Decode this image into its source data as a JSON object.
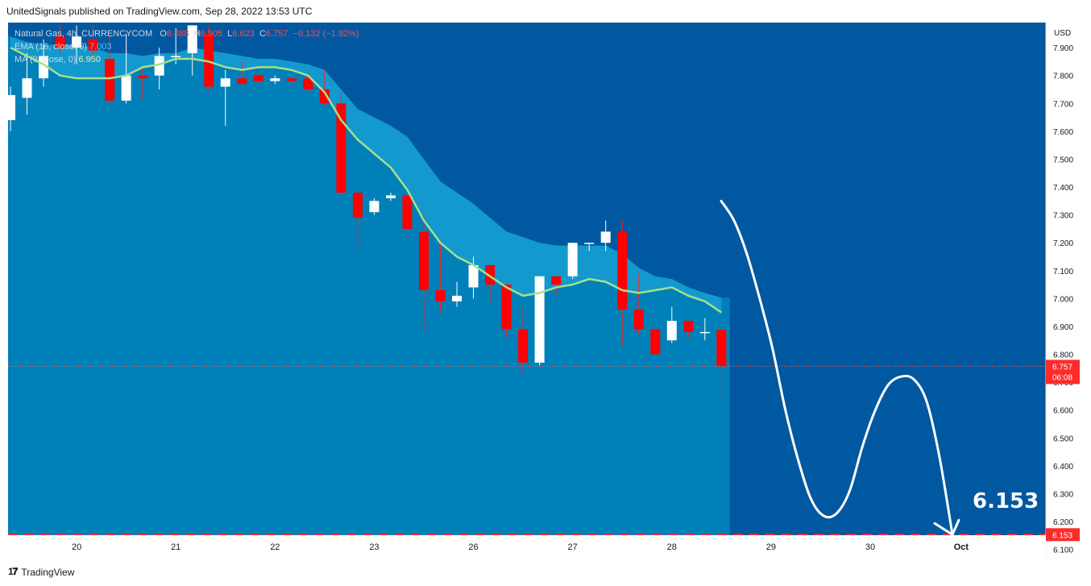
{
  "header": {
    "credit": "UnitedSignals published on TradingView.com, Sep 28, 2022 13:53 UTC"
  },
  "footer": {
    "brand": "TradingView",
    "logo_icon": "tradingview-logo-icon"
  },
  "legend": {
    "symbol": "Natural Gas, 4h, CURRENCYCOM",
    "o_label": "O",
    "o_value": "6.888",
    "h_label": "H",
    "h_value": "6.905",
    "l_label": "L",
    "l_value": "6.623",
    "c_label": "C",
    "c_value": "6.757",
    "change": "−0.132 (−1.92%)",
    "ema_label": "EMA (16, close, 0)",
    "ema_value": "7.003",
    "ma_label": "MA (9, close, 0)",
    "ma_value": "6.950"
  },
  "colors": {
    "plot_background": "#0058a0",
    "area_fill": "#0080b8",
    "band_fill": "#169ed0",
    "ma_line": "#a6e08a",
    "bull_candle": "#ffffff",
    "bear_candle": "#ff0000",
    "projection": "#ffffff",
    "target_line": "#ff2b2b"
  },
  "chart_data": {
    "type": "candlestick",
    "title": "Natural Gas, 4h, CURRENCYCOM",
    "currency_label": "USD",
    "y_ticks": [
      "7.900",
      "7.800",
      "7.700",
      "7.600",
      "7.500",
      "7.400",
      "7.300",
      "7.200",
      "7.100",
      "7.000",
      "6.900",
      "6.800",
      "6.700",
      "6.600",
      "6.500",
      "6.400",
      "6.300",
      "6.200",
      "6.100"
    ],
    "ylim": [
      6.07,
      7.99
    ],
    "x_ticks": [
      {
        "label": "20",
        "bar": 4
      },
      {
        "label": "21",
        "bar": 10
      },
      {
        "label": "22",
        "bar": 16
      },
      {
        "label": "23",
        "bar": 22
      },
      {
        "label": "26",
        "bar": 28
      },
      {
        "label": "27",
        "bar": 34
      },
      {
        "label": "28",
        "bar": 40
      },
      {
        "label": "29",
        "bar": 46
      },
      {
        "label": "30",
        "bar": 52
      },
      {
        "label": "Oct",
        "bar": 57.5
      }
    ],
    "candles": [
      {
        "o": 7.64,
        "h": 7.76,
        "l": 7.6,
        "c": 7.73
      },
      {
        "o": 7.72,
        "h": 7.88,
        "l": 7.66,
        "c": 7.79
      },
      {
        "o": 7.79,
        "h": 7.93,
        "l": 7.76,
        "c": 7.87
      },
      {
        "o": 7.94,
        "h": 7.98,
        "l": 7.88,
        "c": 7.9
      },
      {
        "o": 7.9,
        "h": 7.98,
        "l": 7.84,
        "c": 7.94
      },
      {
        "o": 7.93,
        "h": 7.98,
        "l": 7.86,
        "c": 7.89
      },
      {
        "o": 7.86,
        "h": 7.94,
        "l": 7.7,
        "c": 7.71
      },
      {
        "o": 7.71,
        "h": 7.95,
        "l": 7.7,
        "c": 7.8
      },
      {
        "o": 7.8,
        "h": 7.83,
        "l": 7.71,
        "c": 7.79
      },
      {
        "o": 7.8,
        "h": 7.9,
        "l": 7.75,
        "c": 7.87
      },
      {
        "o": 7.87,
        "h": 7.97,
        "l": 7.84,
        "c": 7.87
      },
      {
        "o": 7.88,
        "h": 7.98,
        "l": 7.8,
        "c": 7.98
      },
      {
        "o": 7.95,
        "h": 7.98,
        "l": 7.74,
        "c": 7.76
      },
      {
        "o": 7.76,
        "h": 7.82,
        "l": 7.62,
        "c": 7.79
      },
      {
        "o": 7.79,
        "h": 7.85,
        "l": 7.76,
        "c": 7.77
      },
      {
        "o": 7.8,
        "h": 7.81,
        "l": 7.77,
        "c": 7.78
      },
      {
        "o": 7.78,
        "h": 7.8,
        "l": 7.77,
        "c": 7.79
      },
      {
        "o": 7.79,
        "h": 7.8,
        "l": 7.76,
        "c": 7.78
      },
      {
        "o": 7.79,
        "h": 7.81,
        "l": 7.74,
        "c": 7.75
      },
      {
        "o": 7.75,
        "h": 7.82,
        "l": 7.69,
        "c": 7.7
      },
      {
        "o": 7.7,
        "h": 7.74,
        "l": 7.36,
        "c": 7.38
      },
      {
        "o": 7.38,
        "h": 7.38,
        "l": 7.18,
        "c": 7.29
      },
      {
        "o": 7.31,
        "h": 7.36,
        "l": 7.3,
        "c": 7.35
      },
      {
        "o": 7.36,
        "h": 7.38,
        "l": 7.35,
        "c": 7.37
      },
      {
        "o": 7.37,
        "h": 7.38,
        "l": 7.21,
        "c": 7.25
      },
      {
        "o": 7.24,
        "h": 7.3,
        "l": 6.88,
        "c": 7.03
      },
      {
        "o": 7.03,
        "h": 7.2,
        "l": 6.95,
        "c": 6.99
      },
      {
        "o": 6.99,
        "h": 7.06,
        "l": 6.97,
        "c": 7.01
      },
      {
        "o": 7.04,
        "h": 7.15,
        "l": 7.0,
        "c": 7.12
      },
      {
        "o": 7.12,
        "h": 7.12,
        "l": 6.99,
        "c": 7.05
      },
      {
        "o": 7.05,
        "h": 7.05,
        "l": 6.86,
        "c": 6.89
      },
      {
        "o": 6.89,
        "h": 6.97,
        "l": 6.73,
        "c": 6.77
      },
      {
        "o": 6.77,
        "h": 7.08,
        "l": 6.76,
        "c": 7.08
      },
      {
        "o": 7.08,
        "h": 7.08,
        "l": 7.01,
        "c": 7.05
      },
      {
        "o": 7.08,
        "h": 7.2,
        "l": 7.07,
        "c": 7.2
      },
      {
        "o": 7.2,
        "h": 7.2,
        "l": 7.17,
        "c": 7.2
      },
      {
        "o": 7.2,
        "h": 7.28,
        "l": 7.17,
        "c": 7.24
      },
      {
        "o": 7.24,
        "h": 7.28,
        "l": 6.83,
        "c": 6.96
      },
      {
        "o": 6.96,
        "h": 7.09,
        "l": 6.87,
        "c": 6.89
      },
      {
        "o": 6.89,
        "h": 6.91,
        "l": 6.8,
        "c": 6.8
      },
      {
        "o": 6.85,
        "h": 6.97,
        "l": 6.84,
        "c": 6.92
      },
      {
        "o": 6.92,
        "h": 6.92,
        "l": 6.86,
        "c": 6.88
      },
      {
        "o": 6.88,
        "h": 6.93,
        "l": 6.85,
        "c": 6.88
      },
      {
        "o": 6.888,
        "h": 6.905,
        "l": 6.623,
        "c": 6.757
      }
    ],
    "series": [
      {
        "name": "EMA (16, close, 0)",
        "values": [
          7.94,
          7.92,
          7.91,
          7.91,
          7.91,
          7.9,
          7.88,
          7.88,
          7.87,
          7.88,
          7.88,
          7.9,
          7.89,
          7.88,
          7.87,
          7.86,
          7.86,
          7.85,
          7.84,
          7.82,
          7.75,
          7.68,
          7.65,
          7.62,
          7.58,
          7.5,
          7.42,
          7.38,
          7.34,
          7.29,
          7.24,
          7.22,
          7.2,
          7.19,
          7.19,
          7.19,
          7.19,
          7.16,
          7.11,
          7.08,
          7.07,
          7.04,
          7.02,
          7.003
        ]
      },
      {
        "name": "MA (9, close, 0)",
        "values": [
          7.9,
          7.87,
          7.84,
          7.8,
          7.79,
          7.79,
          7.79,
          7.8,
          7.83,
          7.84,
          7.86,
          7.86,
          7.85,
          7.83,
          7.82,
          7.83,
          7.83,
          7.82,
          7.8,
          7.74,
          7.64,
          7.57,
          7.52,
          7.47,
          7.39,
          7.28,
          7.2,
          7.15,
          7.12,
          7.08,
          7.04,
          7.01,
          7.02,
          7.04,
          7.05,
          7.07,
          7.06,
          7.03,
          7.02,
          7.03,
          7.04,
          7.01,
          6.99,
          6.95
        ]
      }
    ],
    "projection": [
      7.35,
      7.28,
      7.16,
      7.0,
      6.82,
      6.6,
      6.42,
      6.28,
      6.22,
      6.23,
      6.31,
      6.47,
      6.6,
      6.69,
      6.72,
      6.71,
      6.63,
      6.43,
      6.153
    ],
    "current_price": "6.757",
    "countdown": "06:08",
    "target_value": 6.153,
    "target_label": "6.153",
    "target_axis_label": "6.153"
  }
}
